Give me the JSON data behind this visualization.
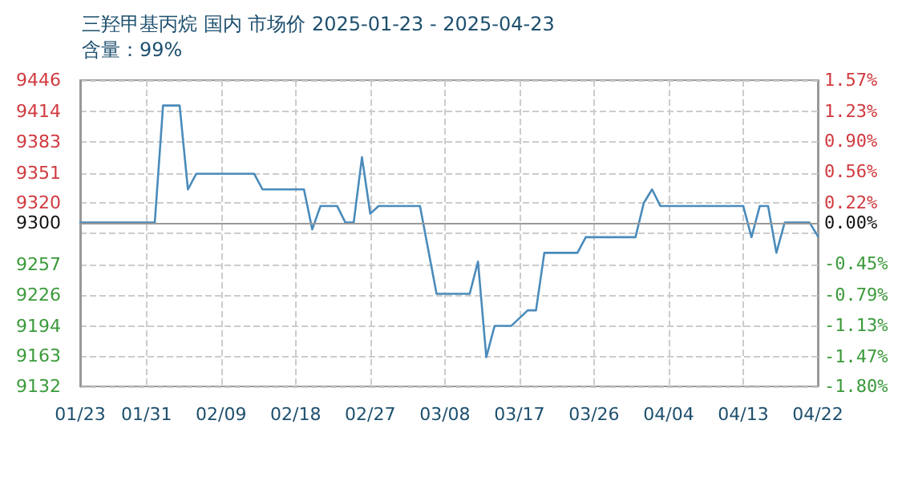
{
  "chart_data": {
    "type": "line",
    "title": "三羟甲基丙烷 国内 市场价 2025-01-23 - 2025-04-23",
    "subtitle": "含量：99%",
    "x": [
      "2025-01-23",
      "2025-02-01",
      "2025-02-02",
      "2025-02-04",
      "2025-02-05",
      "2025-02-06",
      "2025-02-13",
      "2025-02-14",
      "2025-02-19",
      "2025-02-20",
      "2025-02-21",
      "2025-02-23",
      "2025-02-24",
      "2025-02-25",
      "2025-02-26",
      "2025-02-27",
      "2025-02-28",
      "2025-03-05",
      "2025-03-07",
      "2025-03-11",
      "2025-03-12",
      "2025-03-13",
      "2025-03-14",
      "2025-03-16",
      "2025-03-18",
      "2025-03-19",
      "2025-03-20",
      "2025-03-24",
      "2025-03-25",
      "2025-03-31",
      "2025-04-01",
      "2025-04-02",
      "2025-04-03",
      "2025-04-13",
      "2025-04-14",
      "2025-04-15",
      "2025-04-16",
      "2025-04-17",
      "2025-04-18",
      "2025-04-21",
      "2025-04-22"
    ],
    "series": [
      {
        "color": "#4a8bbb",
        "values": [
          9300,
          9300,
          9420,
          9420,
          9334,
          9350,
          9350,
          9334,
          9334,
          9293,
          9317,
          9317,
          9300,
          9300,
          9367,
          9309,
          9317,
          9317,
          9227,
          9227,
          9260,
          9162,
          9194,
          9194,
          9210,
          9210,
          9269,
          9269,
          9285,
          9285,
          9320,
          9334,
          9317,
          9317,
          9285,
          9317,
          9317,
          9269,
          9300,
          9300,
          9286
        ]
      }
    ],
    "xlim": [
      "2025-01-23",
      "2025-04-22"
    ],
    "xticks": [
      {
        "value": "2025-01-23",
        "label": "01/23"
      },
      {
        "value": "2025-01-31",
        "label": "01/31"
      },
      {
        "value": "2025-02-09",
        "label": "02/09"
      },
      {
        "value": "2025-02-18",
        "label": "02/18"
      },
      {
        "value": "2025-02-27",
        "label": "02/27"
      },
      {
        "value": "2025-03-08",
        "label": "03/08"
      },
      {
        "value": "2025-03-17",
        "label": "03/17"
      },
      {
        "value": "2025-03-26",
        "label": "03/26"
      },
      {
        "value": "2025-04-04",
        "label": "04/04"
      },
      {
        "value": "2025-04-13",
        "label": "04/13"
      },
      {
        "value": "2025-04-22",
        "label": "04/22"
      }
    ],
    "ylim": [
      9132,
      9446
    ],
    "yticks": [
      9132,
      9163,
      9194,
      9226,
      9257,
      {
        "value": 9288.6,
        "label": null
      },
      9300,
      9320,
      9351,
      9383,
      9414,
      9446
    ],
    "y2lim": [
      -1.8,
      1.57
    ],
    "y2ticks": [
      {
        "value": -1.8,
        "label": "-1.80%"
      },
      {
        "value": -1.47,
        "label": "-1.47%"
      },
      {
        "value": -1.13,
        "label": "-1.13%"
      },
      {
        "value": -0.79,
        "label": "-0.79%"
      },
      {
        "value": -0.45,
        "label": "-0.45%"
      },
      {
        "value": 0,
        "label": "0.00%"
      },
      {
        "value": 0.22,
        "label": "0.22%"
      },
      {
        "value": 0.56,
        "label": "0.56%"
      },
      {
        "value": 0.9,
        "label": "0.90%"
      },
      {
        "value": 1.23,
        "label": "1.23%"
      },
      {
        "value": 1.57,
        "label": "1.57%"
      }
    ],
    "ref_lines": [
      {
        "axis": "y",
        "value": 9300,
        "color": "#999999",
        "line_style": "solid"
      }
    ],
    "grid": true,
    "marker": "none",
    "line_style": "solid"
  }
}
